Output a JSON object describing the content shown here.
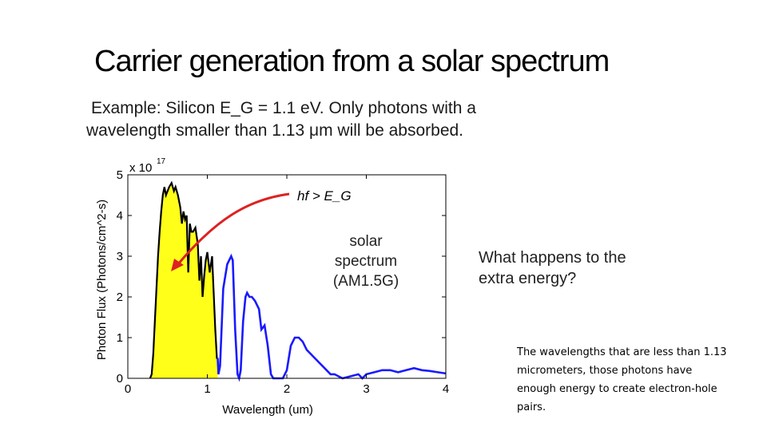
{
  "slide": {
    "title": "Carrier generation from a solar spectrum",
    "example_line1": "Example: Silicon E_G = 1.1 eV. Only photons with a",
    "example_line2": "wavelength smaller than 1.13 μm will be absorbed.",
    "question": "What happens to the extra energy?",
    "answer": "The wavelengths that are less than 1.13 micrometers, those photons have enough energy to create electron-hole pairs."
  },
  "chart_data": {
    "type": "area",
    "title": "",
    "xlabel": "Wavelength (um)",
    "ylabel": "Photon Flux (Photons/cm^2-s)",
    "y_multiplier": "x 10^17",
    "xlim": [
      0,
      4
    ],
    "ylim": [
      0,
      5
    ],
    "xticks": [
      "0",
      "1",
      "2",
      "3",
      "4"
    ],
    "yticks": [
      "0",
      "1",
      "2",
      "3",
      "4",
      "5"
    ],
    "grid": false,
    "series": [
      {
        "name": "solar spectrum (AM1.5G)",
        "color": "#1a1aff",
        "x": [
          0.28,
          0.3,
          0.32,
          0.35,
          0.38,
          0.4,
          0.42,
          0.44,
          0.46,
          0.48,
          0.5,
          0.52,
          0.55,
          0.58,
          0.6,
          0.63,
          0.66,
          0.68,
          0.7,
          0.72,
          0.74,
          0.76,
          0.78,
          0.8,
          0.82,
          0.85,
          0.88,
          0.9,
          0.92,
          0.94,
          0.96,
          0.98,
          1.0,
          1.03,
          1.06,
          1.1,
          1.12,
          1.13,
          1.14,
          1.16,
          1.2,
          1.25,
          1.3,
          1.32,
          1.35,
          1.38,
          1.4,
          1.42,
          1.45,
          1.48,
          1.5,
          1.53,
          1.56,
          1.6,
          1.65,
          1.68,
          1.72,
          1.76,
          1.8,
          1.83,
          1.86,
          1.9,
          1.95,
          2.0,
          2.05,
          2.1,
          2.15,
          2.2,
          2.25,
          2.3,
          2.35,
          2.4,
          2.45,
          2.5,
          2.55,
          2.6,
          2.7,
          2.8,
          2.9,
          2.95,
          3.0,
          3.1,
          3.2,
          3.3,
          3.4,
          3.5,
          3.6,
          3.7,
          3.8,
          3.9,
          4.0
        ],
        "values": [
          0.0,
          0.1,
          0.6,
          1.8,
          3.0,
          3.6,
          4.1,
          4.5,
          4.7,
          4.5,
          4.6,
          4.7,
          4.8,
          4.6,
          4.7,
          4.5,
          4.2,
          3.8,
          4.1,
          3.9,
          4.0,
          2.6,
          3.8,
          3.6,
          3.6,
          3.7,
          3.3,
          2.4,
          3.0,
          2.0,
          2.5,
          2.9,
          3.1,
          2.6,
          3.0,
          1.2,
          0.5,
          0.5,
          0.1,
          0.3,
          2.2,
          2.8,
          3.0,
          2.9,
          1.2,
          0.1,
          0.0,
          0.2,
          1.4,
          2.0,
          2.1,
          2.0,
          2.0,
          1.9,
          1.7,
          1.2,
          1.3,
          0.8,
          0.1,
          0.0,
          0.0,
          0.0,
          0.0,
          0.2,
          0.8,
          1.0,
          1.0,
          0.9,
          0.7,
          0.6,
          0.5,
          0.4,
          0.3,
          0.2,
          0.1,
          0.1,
          0.0,
          0.05,
          0.1,
          0.0,
          0.1,
          0.15,
          0.2,
          0.2,
          0.15,
          0.2,
          0.25,
          0.2,
          0.18,
          0.15,
          0.12
        ]
      }
    ],
    "absorbed_fill_color": "#ffff1a",
    "absorption_edge_um": 1.13,
    "annotations": [
      {
        "text": "hf > E_G",
        "type": "arrow",
        "color": "#dd2222"
      },
      {
        "text": "solar spectrum (AM1.5G)",
        "type": "label"
      }
    ]
  }
}
